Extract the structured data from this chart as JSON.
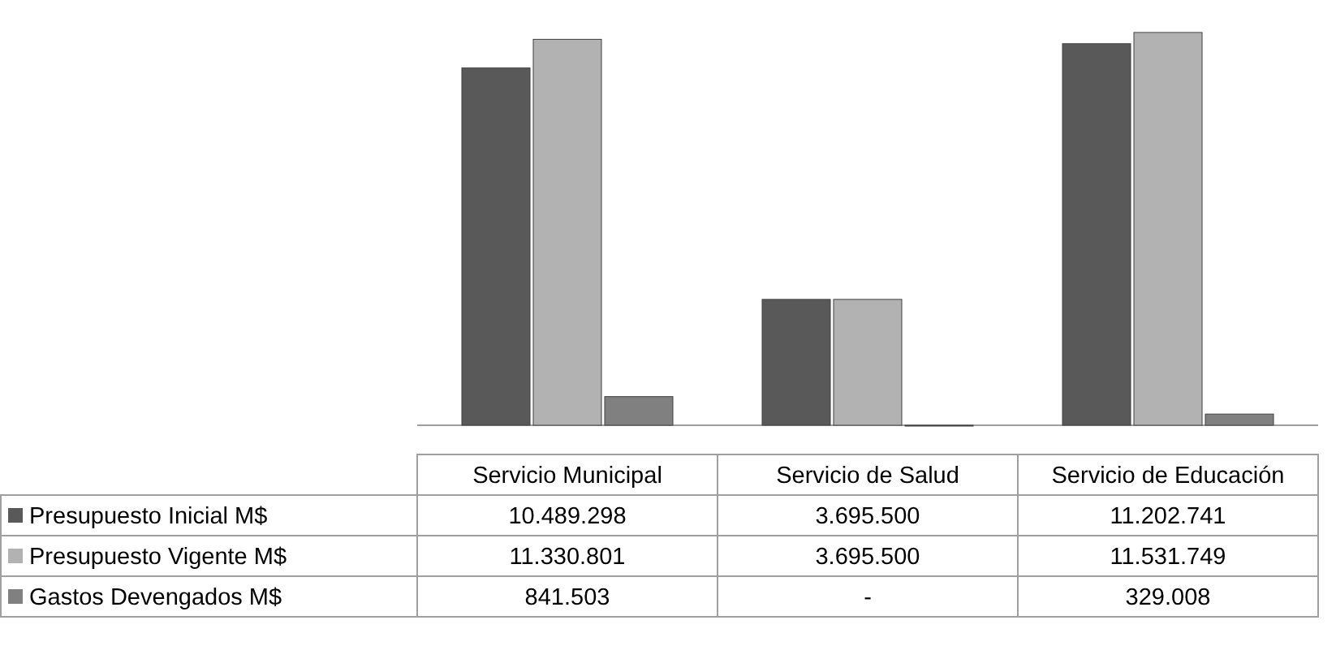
{
  "chart_data": {
    "type": "bar",
    "categories": [
      "Servicio Municipal",
      "Servicio de Salud",
      "Servicio de Educación"
    ],
    "series": [
      {
        "name": "Presupuesto Inicial M$",
        "color": "#595959",
        "values": [
          10489298,
          3695500,
          11202741
        ],
        "value_labels": [
          "10.489.298",
          "3.695.500",
          "11.202.741"
        ]
      },
      {
        "name": "Presupuesto Vigente M$",
        "color": "#b2b2b2",
        "values": [
          11330801,
          3695500,
          11531749
        ],
        "value_labels": [
          "11.330.801",
          "3.695.500",
          "11.531.749"
        ]
      },
      {
        "name": "Gastos Devengados M$",
        "color": "#808080",
        "values": [
          841503,
          0,
          329008
        ],
        "value_labels": [
          "841.503",
          "-",
          "329.008"
        ]
      }
    ],
    "legend": "bottom left"
  }
}
